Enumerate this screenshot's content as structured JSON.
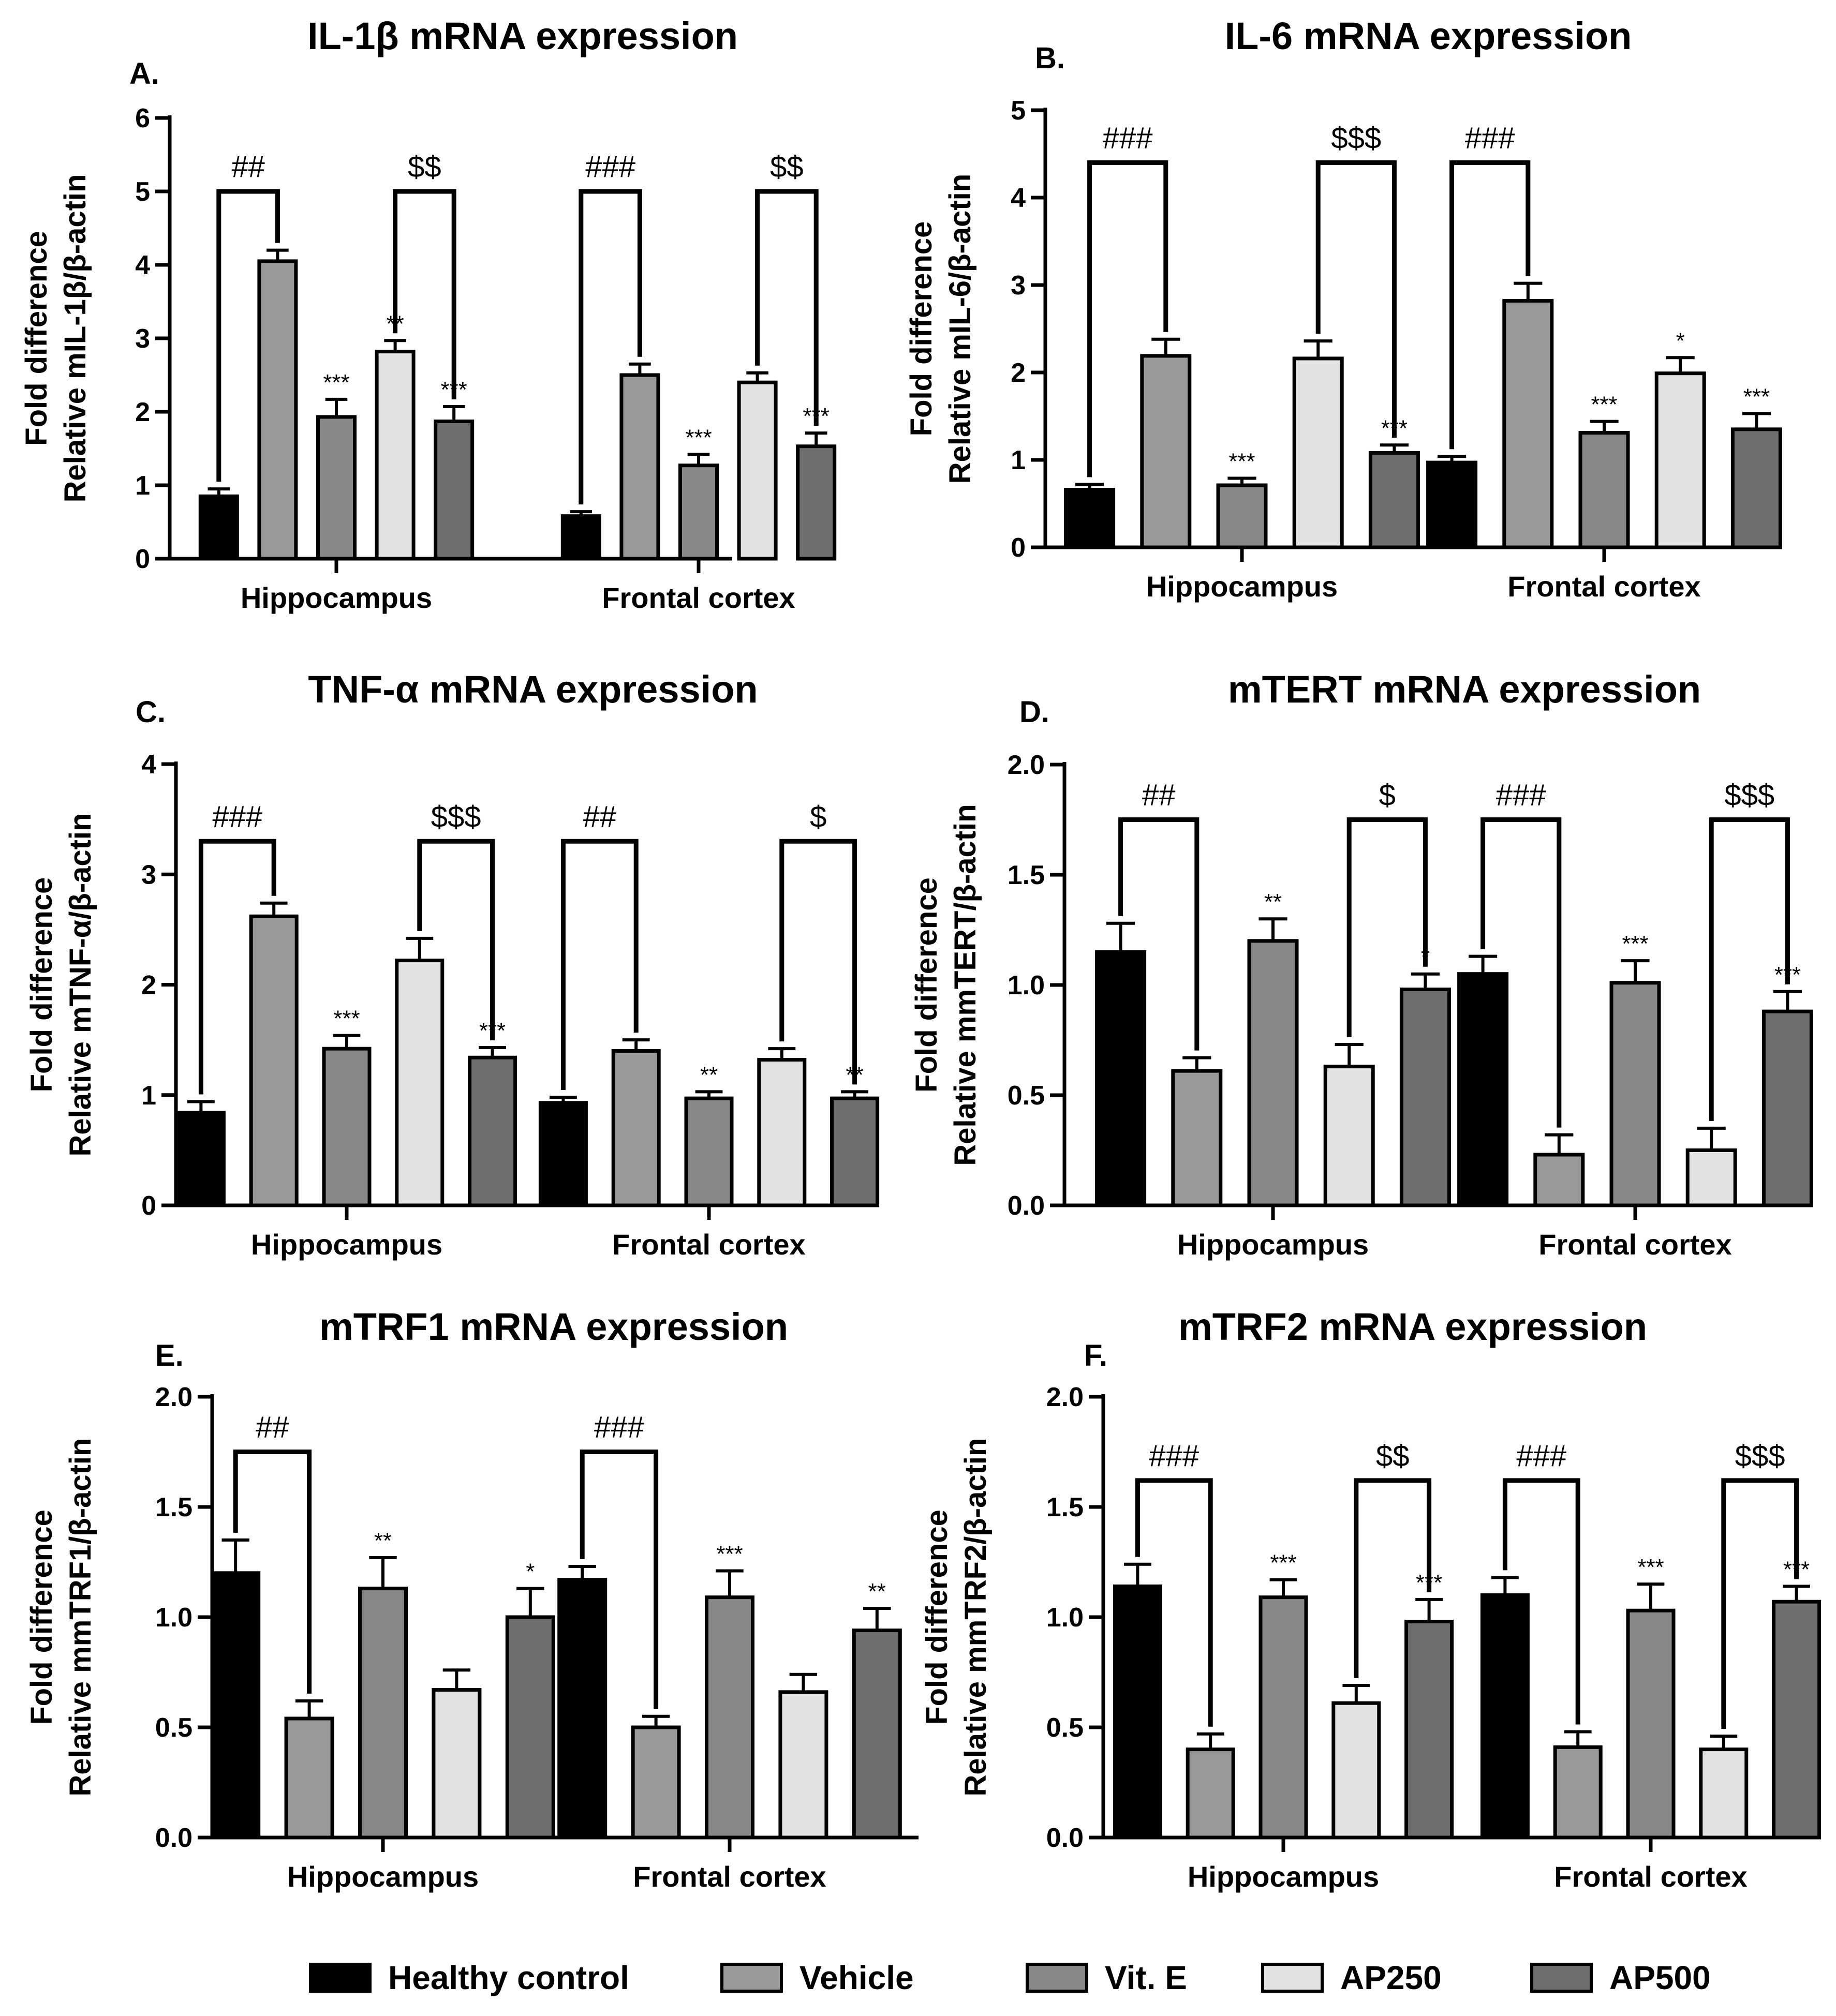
{
  "legend": [
    {
      "name": "Healthy control",
      "color": "#000000"
    },
    {
      "name": "Vehicle",
      "color": "#999999"
    },
    {
      "name": "Vit. E",
      "color": "#888888"
    },
    {
      "name": "AP250",
      "color": "#e2e2e2"
    },
    {
      "name": "AP500",
      "color": "#6e6e6e"
    }
  ],
  "chart_data": [
    {
      "type": "bar",
      "label": "A.",
      "title": "IL-1β mRNA expression",
      "ylabel_line1": "Fold difference",
      "ylabel_line2": "Relative mIL-1β/β-actin",
      "ylim": [
        0,
        6
      ],
      "yticks": [
        "0",
        "1",
        "2",
        "3",
        "4",
        "5",
        "6"
      ],
      "categories": [
        "Hippocampus",
        "Frontal cortex"
      ],
      "series": [
        {
          "name": "Healthy control",
          "values": [
            0.85,
            0.58
          ],
          "errors": [
            0.1,
            0.06
          ],
          "sig": [
            "",
            ""
          ]
        },
        {
          "name": "Vehicle",
          "values": [
            4.05,
            2.5
          ],
          "errors": [
            0.15,
            0.15
          ],
          "sig": [
            "",
            ""
          ]
        },
        {
          "name": "Vit. E",
          "values": [
            1.93,
            1.27
          ],
          "errors": [
            0.24,
            0.15
          ],
          "sig": [
            "***",
            "***"
          ]
        },
        {
          "name": "AP250",
          "values": [
            2.82,
            2.4
          ],
          "errors": [
            0.15,
            0.13
          ],
          "sig": [
            "**",
            ""
          ]
        },
        {
          "name": "AP500",
          "values": [
            1.87,
            1.53
          ],
          "errors": [
            0.2,
            0.18
          ],
          "sig": [
            "***",
            "***"
          ]
        }
      ],
      "brackets": [
        {
          "group": 0,
          "from": 0,
          "to": 1,
          "y": 5.0,
          "label": "##"
        },
        {
          "group": 0,
          "from": 3,
          "to": 4,
          "y": 5.0,
          "label": "$$"
        },
        {
          "group": 1,
          "from": 0,
          "to": 1,
          "y": 5.0,
          "label": "###"
        },
        {
          "group": 1,
          "from": 3,
          "to": 4,
          "y": 5.0,
          "label": "$$"
        }
      ]
    },
    {
      "type": "bar",
      "label": "B.",
      "title": "IL-6 mRNA expression",
      "ylabel_line1": "Fold difference",
      "ylabel_line2": "Relative mIL-6/β-actin",
      "ylim": [
        0,
        5
      ],
      "yticks": [
        "0",
        "1",
        "2",
        "3",
        "4",
        "5"
      ],
      "categories": [
        "Hippocampus",
        "Frontal cortex"
      ],
      "series": [
        {
          "name": "Healthy control",
          "values": [
            0.66,
            0.97
          ],
          "errors": [
            0.06,
            0.07
          ],
          "sig": [
            "",
            ""
          ]
        },
        {
          "name": "Vehicle",
          "values": [
            2.19,
            2.82
          ],
          "errors": [
            0.19,
            0.2
          ],
          "sig": [
            "",
            ""
          ]
        },
        {
          "name": "Vit. E",
          "values": [
            0.71,
            1.31
          ],
          "errors": [
            0.08,
            0.13
          ],
          "sig": [
            "***",
            "***"
          ]
        },
        {
          "name": "AP250",
          "values": [
            2.16,
            1.99
          ],
          "errors": [
            0.2,
            0.18
          ],
          "sig": [
            "",
            "*"
          ]
        },
        {
          "name": "AP500",
          "values": [
            1.08,
            1.35
          ],
          "errors": [
            0.09,
            0.18
          ],
          "sig": [
            "***",
            "***"
          ]
        }
      ],
      "brackets": [
        {
          "group": 0,
          "from": 0,
          "to": 1,
          "y": 4.4,
          "label": "###"
        },
        {
          "group": 0,
          "from": 3,
          "to": 4,
          "y": 4.4,
          "label": "$$$"
        },
        {
          "group": 1,
          "from": 0,
          "to": 1,
          "y": 4.4,
          "label": "###"
        }
      ]
    },
    {
      "type": "bar",
      "label": "C.",
      "title": "TNF-α mRNA expression",
      "ylabel_line1": "Fold difference",
      "ylabel_line2": "Relative mTNF-α/β-actin",
      "ylim": [
        0,
        4
      ],
      "yticks": [
        "0",
        "1",
        "2",
        "3",
        "4"
      ],
      "categories": [
        "Hippocampus",
        "Frontal cortex"
      ],
      "series": [
        {
          "name": "Healthy control",
          "values": [
            0.84,
            0.93
          ],
          "errors": [
            0.1,
            0.05
          ],
          "sig": [
            "",
            ""
          ]
        },
        {
          "name": "Vehicle",
          "values": [
            2.62,
            1.4
          ],
          "errors": [
            0.12,
            0.1
          ],
          "sig": [
            "",
            ""
          ]
        },
        {
          "name": "Vit. E",
          "values": [
            1.42,
            0.97
          ],
          "errors": [
            0.12,
            0.06
          ],
          "sig": [
            "***",
            "**"
          ]
        },
        {
          "name": "AP250",
          "values": [
            2.22,
            1.32
          ],
          "errors": [
            0.2,
            0.1
          ],
          "sig": [
            "",
            ""
          ]
        },
        {
          "name": "AP500",
          "values": [
            1.34,
            0.97
          ],
          "errors": [
            0.09,
            0.06
          ],
          "sig": [
            "***",
            "**"
          ]
        }
      ],
      "brackets": [
        {
          "group": 0,
          "from": 0,
          "to": 1,
          "y": 3.3,
          "label": "###"
        },
        {
          "group": 0,
          "from": 3,
          "to": 4,
          "y": 3.3,
          "label": "$$$"
        },
        {
          "group": 1,
          "from": 0,
          "to": 1,
          "y": 3.3,
          "label": "##"
        },
        {
          "group": 1,
          "from": 3,
          "to": 4,
          "y": 3.3,
          "label": "$"
        }
      ]
    },
    {
      "type": "bar",
      "label": "D.",
      "title": "mTERT mRNA expression",
      "ylabel_line1": "Fold difference",
      "ylabel_line2": "Relative mmTERT/β-actin",
      "ylim": [
        0,
        2.0
      ],
      "yticks": [
        "0.0",
        "0.5",
        "1.0",
        "1.5",
        "2.0"
      ],
      "categories": [
        "Hippocampus",
        "Frontal cortex"
      ],
      "series": [
        {
          "name": "Healthy control",
          "values": [
            1.15,
            1.05
          ],
          "errors": [
            0.13,
            0.08
          ],
          "sig": [
            "",
            ""
          ]
        },
        {
          "name": "Vehicle",
          "values": [
            0.61,
            0.23
          ],
          "errors": [
            0.06,
            0.09
          ],
          "sig": [
            "",
            ""
          ]
        },
        {
          "name": "Vit. E",
          "values": [
            1.2,
            1.01
          ],
          "errors": [
            0.1,
            0.1
          ],
          "sig": [
            "**",
            "***"
          ]
        },
        {
          "name": "AP250",
          "values": [
            0.63,
            0.25
          ],
          "errors": [
            0.1,
            0.1
          ],
          "sig": [
            "",
            ""
          ]
        },
        {
          "name": "AP500",
          "values": [
            0.98,
            0.88
          ],
          "errors": [
            0.07,
            0.09
          ],
          "sig": [
            "*",
            "***"
          ]
        }
      ],
      "brackets": [
        {
          "group": 0,
          "from": 0,
          "to": 1,
          "y": 1.75,
          "label": "##"
        },
        {
          "group": 0,
          "from": 3,
          "to": 4,
          "y": 1.75,
          "label": "$"
        },
        {
          "group": 1,
          "from": 0,
          "to": 1,
          "y": 1.75,
          "label": "###"
        },
        {
          "group": 1,
          "from": 3,
          "to": 4,
          "y": 1.75,
          "label": "$$$"
        }
      ]
    },
    {
      "type": "bar",
      "label": "E.",
      "title": "mTRF1 mRNA expression",
      "ylabel_line1": "Fold difference",
      "ylabel_line2": "Relative mmTRF1/β-actin",
      "ylim": [
        0,
        2.0
      ],
      "yticks": [
        "0.0",
        "0.5",
        "1.0",
        "1.5",
        "2.0"
      ],
      "categories": [
        "Hippocampus",
        "Frontal cortex"
      ],
      "series": [
        {
          "name": "Healthy control",
          "values": [
            1.2,
            1.17
          ],
          "errors": [
            0.15,
            0.06
          ],
          "sig": [
            "",
            ""
          ]
        },
        {
          "name": "Vehicle",
          "values": [
            0.54,
            0.5
          ],
          "errors": [
            0.08,
            0.05
          ],
          "sig": [
            "",
            ""
          ]
        },
        {
          "name": "Vit. E",
          "values": [
            1.13,
            1.09
          ],
          "errors": [
            0.14,
            0.12
          ],
          "sig": [
            "**",
            "***"
          ]
        },
        {
          "name": "AP250",
          "values": [
            0.67,
            0.66
          ],
          "errors": [
            0.09,
            0.08
          ],
          "sig": [
            "",
            ""
          ]
        },
        {
          "name": "AP500",
          "values": [
            1.0,
            0.94
          ],
          "errors": [
            0.13,
            0.1
          ],
          "sig": [
            "*",
            "**"
          ]
        }
      ],
      "brackets": [
        {
          "group": 0,
          "from": 0,
          "to": 1,
          "y": 1.75,
          "label": "##"
        },
        {
          "group": 1,
          "from": 0,
          "to": 1,
          "y": 1.75,
          "label": "###"
        }
      ]
    },
    {
      "type": "bar",
      "label": "F.",
      "title": "mTRF2 mRNA expression",
      "ylabel_line1": "Fold difference",
      "ylabel_line2": "Relative mmTRF2/β-actin",
      "ylim": [
        0,
        2.0
      ],
      "yticks": [
        "0.0",
        "0.5",
        "1.0",
        "1.5",
        "2.0"
      ],
      "categories": [
        "Hippocampus",
        "Frontal cortex"
      ],
      "series": [
        {
          "name": "Healthy control",
          "values": [
            1.14,
            1.1
          ],
          "errors": [
            0.1,
            0.08
          ],
          "sig": [
            "",
            ""
          ]
        },
        {
          "name": "Vehicle",
          "values": [
            0.4,
            0.41
          ],
          "errors": [
            0.07,
            0.07
          ],
          "sig": [
            "",
            ""
          ]
        },
        {
          "name": "Vit. E",
          "values": [
            1.09,
            1.03
          ],
          "errors": [
            0.08,
            0.12
          ],
          "sig": [
            "***",
            "***"
          ]
        },
        {
          "name": "AP250",
          "values": [
            0.61,
            0.4
          ],
          "errors": [
            0.08,
            0.06
          ],
          "sig": [
            "",
            ""
          ]
        },
        {
          "name": "AP500",
          "values": [
            0.98,
            1.07
          ],
          "errors": [
            0.1,
            0.07
          ],
          "sig": [
            "***",
            "***"
          ]
        }
      ],
      "brackets": [
        {
          "group": 0,
          "from": 0,
          "to": 1,
          "y": 1.62,
          "label": "###"
        },
        {
          "group": 0,
          "from": 3,
          "to": 4,
          "y": 1.62,
          "label": "$$"
        },
        {
          "group": 1,
          "from": 0,
          "to": 1,
          "y": 1.62,
          "label": "###"
        },
        {
          "group": 1,
          "from": 3,
          "to": 4,
          "y": 1.62,
          "label": "$$$"
        }
      ]
    }
  ]
}
